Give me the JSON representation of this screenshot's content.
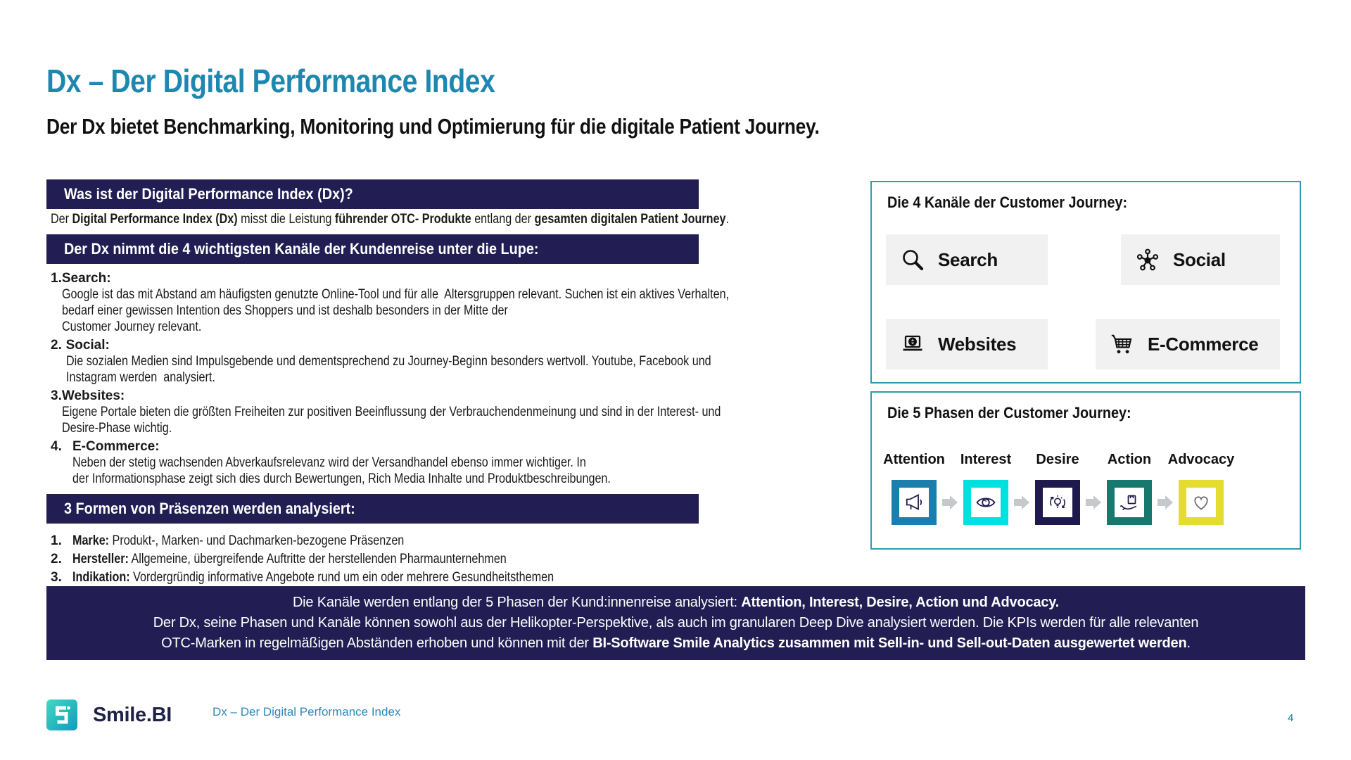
{
  "slide": {
    "title": "Dx – Der Digital Performance Index",
    "subtitle": "Der Dx bietet Benchmarking, Monitoring und Optimierung für die digitale Patient Journey."
  },
  "colors": {
    "title_teal": "#1d87b0",
    "navy": "#221d53",
    "box_border": "#2d9dad",
    "tile_bg": "#f1f1f1",
    "footer_link_blue": "#2f87bd",
    "page_num_teal": "#17809b",
    "arrow_gray": "#c6c9cc"
  },
  "what_section": {
    "header": "Was ist der Digital Performance Index (Dx)?",
    "paragraph_runs": [
      {
        "text": "Der ",
        "bold": false
      },
      {
        "text": "Digital Performance Index (Dx)",
        "bold": true
      },
      {
        "text": " misst die Leistung ",
        "bold": false
      },
      {
        "text": "führender OTC-  Produkte",
        "bold": true
      },
      {
        "text": " entlang der ",
        "bold": false
      },
      {
        "text": "gesamten digitalen Patient Journey",
        "bold": true
      },
      {
        "text": ".",
        "bold": false
      }
    ]
  },
  "channels_section": {
    "header": "Der Dx nimmt die 4 wichtigsten Kanäle der Kundenreise unter die Lupe:",
    "items": [
      {
        "num": "1.",
        "label": "Search:",
        "desc": "Google ist das mit Abstand am häufigsten genutzte Online-Tool und für alle  Altersgruppen relevant. Suchen ist ein aktives Verhalten,\nbedarf einer gewissen Intention des Shoppers und ist deshalb besonders in der Mitte der\nCustomer Journey relevant."
      },
      {
        "num": "2.",
        "label": "Social:",
        "desc": "Die sozialen Medien sind Impulsgebende und dementsprechend zu Journey-Beginn besonders wertvoll. Youtube, Facebook und\nInstagram werden  analysiert."
      },
      {
        "num": "3.",
        "label": "Websites:",
        "desc": "Eigene Portale bieten die größten Freiheiten zur positiven Beeinflussung der Verbrauchendenmeinung und sind in der Interest- und\nDesire-Phase wichtig."
      },
      {
        "num": "4.",
        "label": "E-Commerce:",
        "desc": "Neben der stetig wachsenden Abverkaufsrelevanz wird der Versandhandel ebenso immer wichtiger. In\nder Informationsphase zeigt sich dies durch Bewertungen, Rich Media Inhalte und Produktbeschreibungen."
      }
    ]
  },
  "forms_section": {
    "header": "3 Formen von Präsenzen werden analysiert:",
    "items": [
      {
        "num": "1.",
        "runs": [
          {
            "text": "Marke:",
            "bold": true
          },
          {
            "text": " Produkt-, Marken- und Dachmarken-bezogene Präsenzen",
            "bold": false
          }
        ]
      },
      {
        "num": "2.",
        "runs": [
          {
            "text": "Hersteller:",
            "bold": true
          },
          {
            "text": " Allgemeine, übergreifende Auftritte der herstellenden Pharmaunternehmen",
            "bold": false
          }
        ]
      },
      {
        "num": "3.",
        "runs": [
          {
            "text": "Indikation:",
            "bold": true
          },
          {
            "text": " Vordergründig informative Angebote rund um ein oder mehrere Gesundheitsthemen",
            "bold": false
          }
        ]
      }
    ]
  },
  "banner": {
    "line1_runs": [
      {
        "text": "Die Kanäle werden entlang der 5 Phasen der Kund:innenreise analysiert: ",
        "bold": false
      },
      {
        "text": "Attention, Interest, Desire, Action und Advocacy.",
        "bold": true
      }
    ],
    "line2": "Der Dx, seine Phasen und Kanäle können sowohl aus der Helikopter-Perspektive, als auch im granularen Deep Dive  analysiert werden. Die KPIs werden für alle relevanten",
    "line3_runs": [
      {
        "text": "OTC-Marken in  regelmäßigen Abständen erhoben und können mit der ",
        "bold": false
      },
      {
        "text": "BI-Software Smile Analytics zusammen  mit Sell-in- und Sell-out-Daten ausgewertet werden",
        "bold": true
      },
      {
        "text": ".",
        "bold": false
      }
    ]
  },
  "channels_panel": {
    "title": "Die 4 Kanäle der Customer Journey:",
    "tiles": [
      {
        "icon": "search-icon",
        "label": "Search"
      },
      {
        "icon": "share-network-icon",
        "label": "Social"
      },
      {
        "icon": "laptop-globe-icon",
        "label": "Websites"
      },
      {
        "icon": "shopping-cart-icon",
        "label": "E-Commerce"
      }
    ]
  },
  "phases_panel": {
    "title": "Die 5 Phasen der Customer Journey:",
    "phases": [
      {
        "label": "Attention",
        "icon": "megaphone-icon",
        "color": "#1b7fad"
      },
      {
        "label": "Interest",
        "icon": "eye-icon",
        "color": "#00e0df"
      },
      {
        "label": "Desire",
        "icon": "idea-icon",
        "color": "#1e1a4d"
      },
      {
        "label": "Action",
        "icon": "hand-gift-icon",
        "color": "#17796e"
      },
      {
        "label": "Advocacy",
        "icon": "heart-icon",
        "color": "#e5dd2e"
      }
    ]
  },
  "footer": {
    "brand": "Smile.BI",
    "doc_title": "Dx – Der Digital Performance Index",
    "page_number": "4"
  }
}
